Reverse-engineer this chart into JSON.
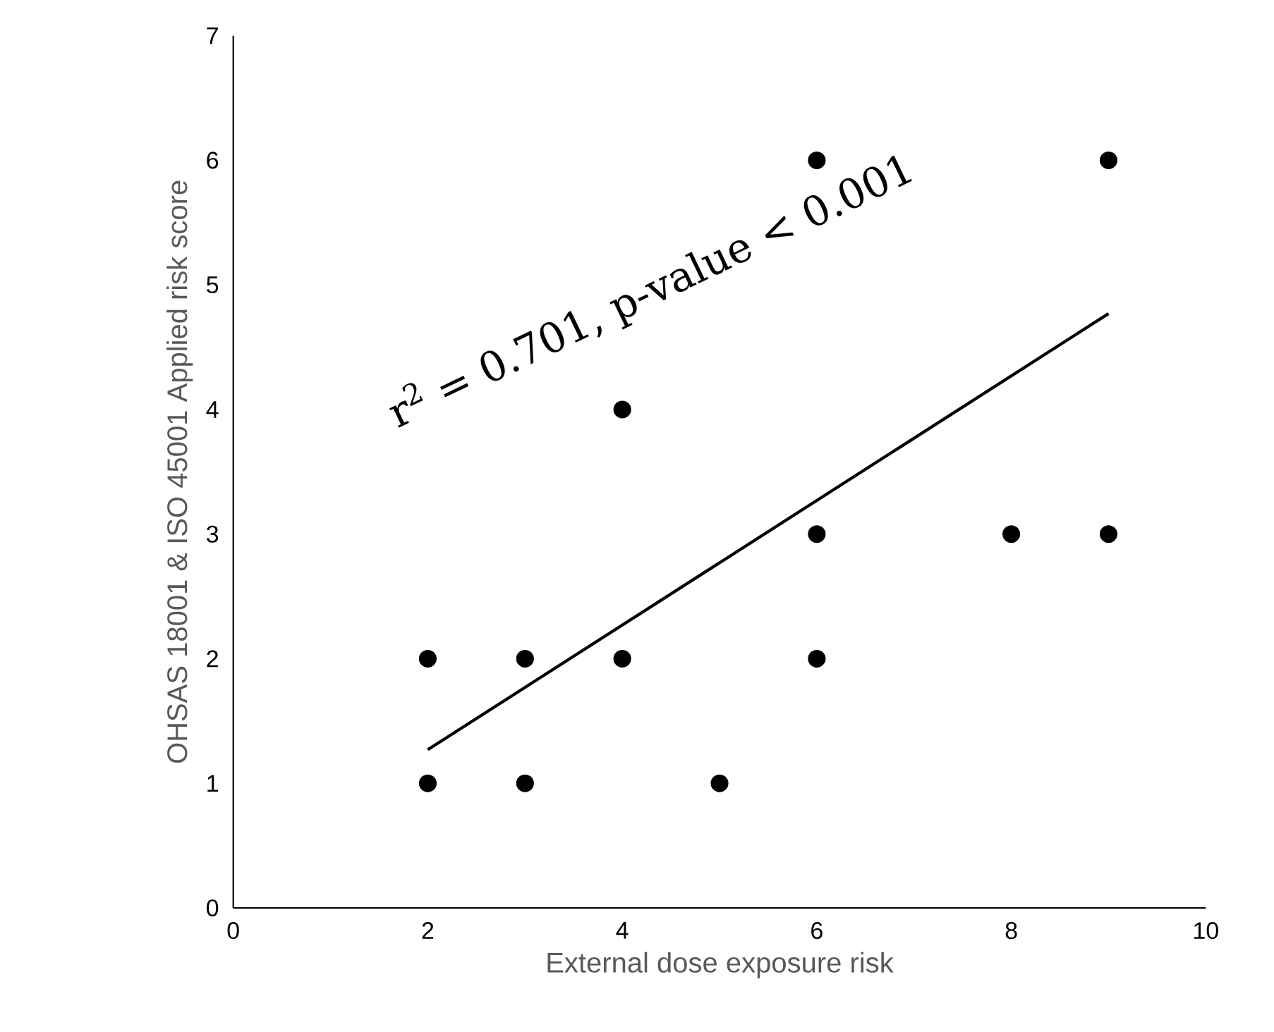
{
  "chart_data": {
    "type": "scatter",
    "xlabel": "External dose exposure risk",
    "ylabel": "OHSAS 18001 & ISO 45001 Applied risk score",
    "annotations": [
      "r$^{2}$ = 0.701, p-value < 0.001"
    ],
    "xlim": [
      0,
      10
    ],
    "ylim": [
      0,
      7
    ],
    "xticks": [
      0,
      2,
      4,
      6,
      8,
      10
    ],
    "yticks": [
      0,
      1,
      2,
      3,
      4,
      5,
      6,
      7
    ],
    "series": [
      {
        "marker": "circle",
        "color": "#000000",
        "x": [
          2,
          2,
          3,
          3,
          4,
          4,
          5,
          6,
          6,
          6,
          8,
          9,
          9
        ],
        "values": [
          1,
          2,
          1,
          2,
          2,
          4,
          1,
          2,
          3,
          6,
          3,
          3,
          6
        ]
      },
      {
        "type": "line",
        "color": "#000000",
        "marker": "none",
        "line_style": "solid",
        "x": [
          2,
          9
        ],
        "values": [
          1.27,
          4.77
        ]
      }
    ]
  }
}
